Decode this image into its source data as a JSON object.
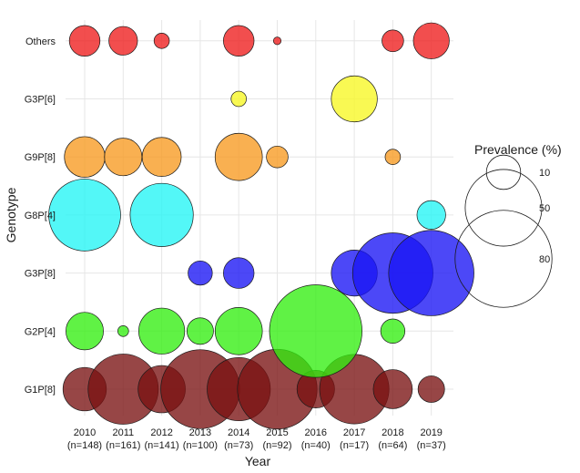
{
  "chart_data": {
    "type": "scatter",
    "xlabel": "Year",
    "ylabel": "Genotype",
    "x_categories": [
      {
        "year": "2010",
        "n": "(n=148)"
      },
      {
        "year": "2011",
        "n": "(n=161)"
      },
      {
        "year": "2012",
        "n": "(n=141)"
      },
      {
        "year": "2013",
        "n": "(n=100)"
      },
      {
        "year": "2014",
        "n": "(n=73)"
      },
      {
        "year": "2015",
        "n": "(n=92)"
      },
      {
        "year": "2016",
        "n": "(n=40)"
      },
      {
        "year": "2017",
        "n": "(n=17)"
      },
      {
        "year": "2018",
        "n": "(n=64)"
      },
      {
        "year": "2019",
        "n": "(n=37)"
      }
    ],
    "y_categories": [
      "G1P[8]",
      "G2P[4]",
      "G3P[8]",
      "G8P[4]",
      "G9P[8]",
      "G3P[6]",
      "Others"
    ],
    "legend": {
      "title": "Prevalence (%)",
      "entries": [
        10,
        50,
        80
      ],
      "position": "right"
    },
    "series": [
      {
        "genotype": "G1P[8]",
        "color": "#7a1212",
        "values": [
          16,
          42,
          19,
          53,
          34,
          54,
          12,
          41,
          13,
          6
        ]
      },
      {
        "genotype": "G2P[4]",
        "color": "#33ee11",
        "values": [
          12,
          1,
          18,
          6,
          19,
          0,
          73,
          0,
          5,
          0
        ]
      },
      {
        "genotype": "G3P[8]",
        "color": "#1a14f5",
        "values": [
          0,
          0,
          0,
          5,
          8,
          0,
          0,
          18,
          55,
          62
        ]
      },
      {
        "genotype": "G8P[4]",
        "color": "#22f5f5",
        "values": [
          44,
          0,
          34,
          0,
          0,
          0,
          0,
          0,
          0,
          7
        ]
      },
      {
        "genotype": "G9P[8]",
        "color": "#f79a20",
        "values": [
          14,
          12,
          13,
          0,
          19,
          4,
          0,
          0,
          2,
          0
        ]
      },
      {
        "genotype": "G3P[6]",
        "color": "#f7f722",
        "values": [
          0,
          0,
          0,
          0,
          2,
          0,
          0,
          18,
          0,
          0
        ]
      },
      {
        "genotype": "Others",
        "color": "#ee1c1c",
        "values": [
          8,
          7,
          2,
          0,
          8,
          0.5,
          0,
          0,
          4,
          11
        ]
      }
    ]
  }
}
